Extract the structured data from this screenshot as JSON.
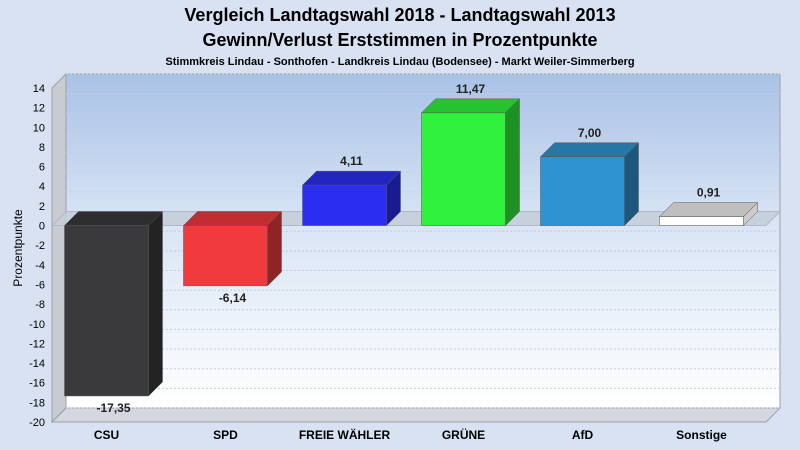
{
  "chart_data": {
    "type": "bar",
    "title": "Vergleich Landtagswahl 2018 - Landtagswahl 2013",
    "subtitle": "Gewinn/Verlust Erststimmen in Prozentpunkte",
    "subsubtitle": "Stimmkreis Lindau - Sonthofen - Landkreis Lindau (Bodensee) - Markt Weiler-Simmerberg",
    "ylabel": "Prozentpunkte",
    "xlabel": "",
    "ylim": [
      -20,
      14
    ],
    "yticks": [
      14,
      12,
      10,
      8,
      6,
      4,
      2,
      0,
      -2,
      -4,
      -6,
      -8,
      -10,
      -12,
      -14,
      -16,
      -18,
      -20
    ],
    "grid": true,
    "categories": [
      "CSU",
      "SPD",
      "FREIE WÄHLER",
      "GRÜNE",
      "AfD",
      "Sonstige"
    ],
    "values": [
      -17.35,
      -6.14,
      4.11,
      11.47,
      7.0,
      0.91
    ],
    "value_labels": [
      "-17,35",
      "-6,14",
      "4,11",
      "11,47",
      "7,00",
      "0,91"
    ],
    "colors": [
      "#3a3a3c",
      "#f03a3e",
      "#2a2ef0",
      "#30f23c",
      "#2f93d0",
      "#ffffff"
    ]
  }
}
